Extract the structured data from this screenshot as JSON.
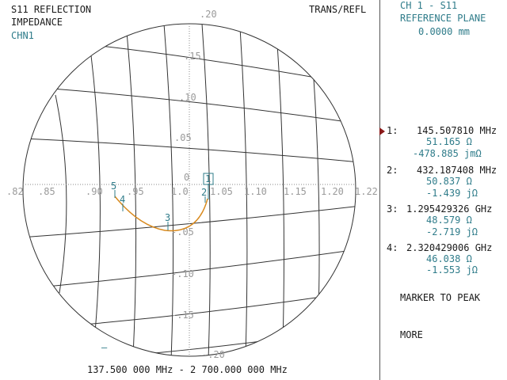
{
  "header": {
    "measurement": "S11 REFLECTION",
    "format": "IMPEDANCE",
    "channel": "CHN1",
    "mode": "TRANS/REFL"
  },
  "right_panel": {
    "title": "CH 1 - S11",
    "subtitle": "REFERENCE PLANE",
    "ref_value": "0.0000 mm",
    "markers": [
      {
        "num": "1:",
        "freq": "145.507810 MHz",
        "real": "51.165 Ω",
        "imag": "-478.885 jmΩ",
        "active": true
      },
      {
        "num": "2:",
        "freq": "432.187408 MHz",
        "real": "50.837 Ω",
        "imag": "-1.439 jΩ",
        "active": false
      },
      {
        "num": "3:",
        "freq": "1.295429326 GHz",
        "real": "48.579 Ω",
        "imag": "-2.719 jΩ",
        "active": false
      },
      {
        "num": "4:",
        "freq": "2.320429006 GHz",
        "real": "46.038 Ω",
        "imag": "-1.553 jΩ",
        "active": false
      }
    ],
    "softkeys": [
      "MARKER TO PEAK",
      "MORE"
    ]
  },
  "footer": {
    "span": "137.500 000 MHz - 2 700.000 000 MHz",
    "dash": "–"
  },
  "chart_data": {
    "type": "smith-zoomed",
    "real_labels": [
      ".82",
      ".85",
      ".90",
      ".95",
      "1.0",
      "1.05",
      "1.10",
      "1.15",
      "1.20",
      "1.22"
    ],
    "imag_labels": [
      ".20",
      ".15",
      ".10",
      ".05",
      "0",
      "-.05",
      "-.10",
      "-.15",
      "-.20"
    ],
    "trace_color": "#d98a1e",
    "marker_labels": [
      "1",
      "2",
      "3",
      "4",
      "5"
    ],
    "colors": {
      "grid": "#333333",
      "label": "#9a9a9a",
      "marker": "#2f7c8a",
      "active_marker": "#8b1a1a"
    }
  }
}
